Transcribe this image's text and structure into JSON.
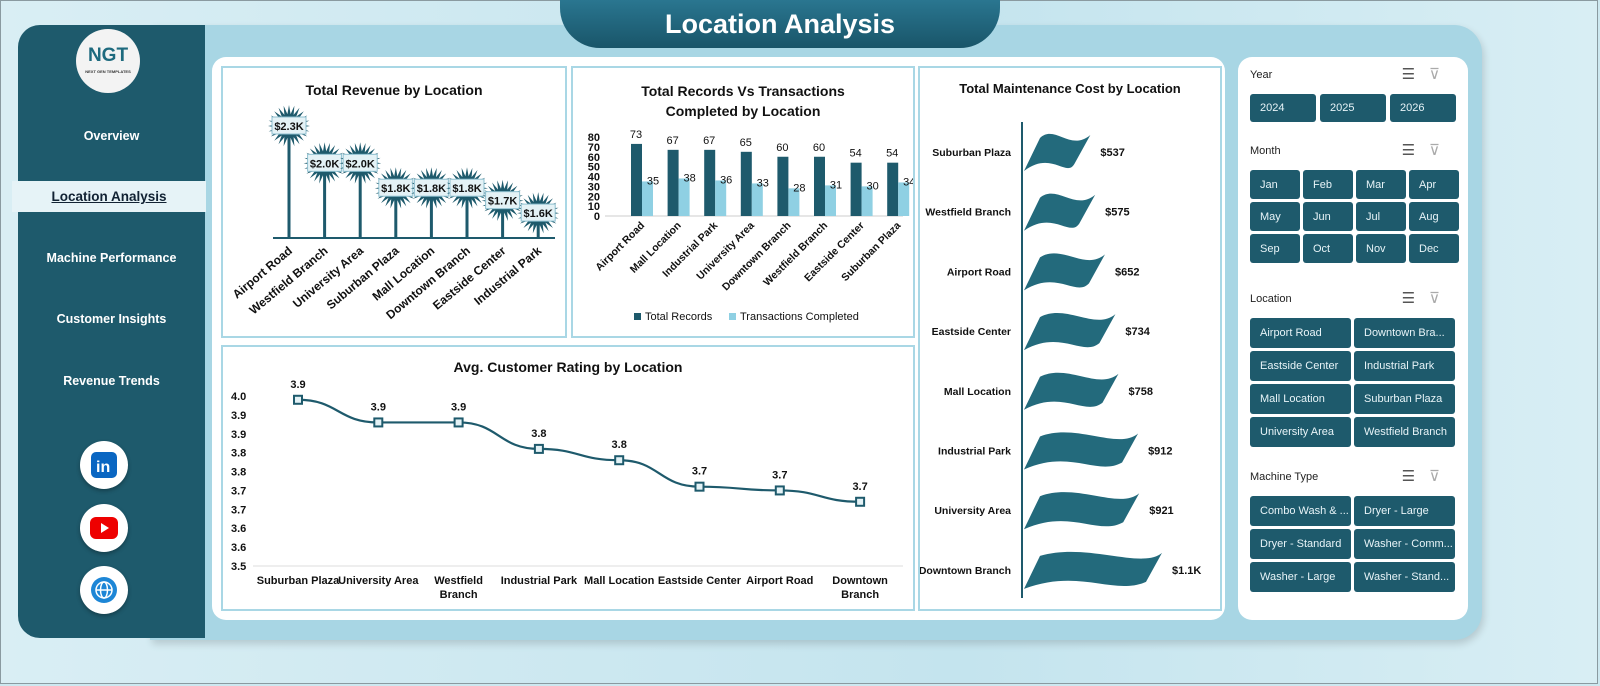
{
  "header": {
    "title": "Location Analysis"
  },
  "sidebar": {
    "logo_text": "NGT",
    "logo_sub": "NEXT GEN TEMPLATES",
    "items": [
      {
        "label": "Overview"
      },
      {
        "label": "Location Analysis",
        "active": true
      },
      {
        "label": "Machine Performance"
      },
      {
        "label": "Customer Insights"
      },
      {
        "label": "Revenue Trends"
      }
    ],
    "social": [
      "linkedin-icon",
      "youtube-icon",
      "globe-icon"
    ]
  },
  "colors": {
    "primary": "#1e5a6c",
    "secondary": "#8fd0e3",
    "background": "#a8d6e4"
  },
  "chart_data": [
    {
      "type": "bar",
      "title": "Total Revenue  by Location",
      "categories": [
        "Airport Road",
        "Westfield Branch",
        "University Area",
        "Suburban Plaza",
        "Mall Location",
        "Downtown Branch",
        "Eastside Center",
        "Industrial Park"
      ],
      "values": [
        2300,
        2000,
        2000,
        1800,
        1800,
        1800,
        1700,
        1600
      ],
      "labels": [
        "$2.3K",
        "$2.0K",
        "$2.0K",
        "$1.8K",
        "$1.8K",
        "$1.8K",
        "$1.7K",
        "$1.6K"
      ]
    },
    {
      "type": "bar",
      "title": "Total Records Vs Transactions Completed by Location",
      "categories": [
        "Airport Road",
        "Mall Location",
        "Industrial Park",
        "University Area",
        "Downtown Branch",
        "Westfield Branch",
        "Eastside Center",
        "Suburban Plaza"
      ],
      "series": [
        {
          "name": "Total Records",
          "values": [
            73,
            67,
            67,
            65,
            60,
            60,
            54,
            54
          ],
          "color": "#1e5a6c"
        },
        {
          "name": "Transactions Completed",
          "values": [
            35,
            38,
            36,
            33,
            28,
            31,
            30,
            34
          ],
          "color": "#8fd0e3"
        }
      ],
      "ylim": [
        0,
        80
      ],
      "yticks": [
        "0",
        "10",
        "20",
        "30",
        "40",
        "50",
        "60",
        "70",
        "80"
      ],
      "legend": "bottom"
    },
    {
      "type": "line",
      "title": "Avg. Customer Rating by Location",
      "categories": [
        "Suburban Plaza",
        "University Area",
        "Westfield Branch",
        "Industrial Park",
        "Mall Location",
        "Eastside Center",
        "Airport Road",
        "Downtown Branch"
      ],
      "values": [
        3.94,
        3.88,
        3.88,
        3.81,
        3.78,
        3.71,
        3.7,
        3.67
      ],
      "labels": [
        "3.9",
        "3.9",
        "3.9",
        "3.8",
        "3.8",
        "3.7",
        "3.7",
        "3.7"
      ],
      "ylim": [
        3.5,
        3.95
      ],
      "yticks": [
        "3.5",
        "3.6",
        "3.6",
        "3.7",
        "3.7",
        "3.8",
        "3.8",
        "3.9",
        "3.9",
        "4.0"
      ]
    },
    {
      "type": "bar",
      "orientation": "horizontal",
      "title": "Total Maintenance Cost by Location",
      "categories": [
        "Suburban Plaza",
        "Westfield Branch",
        "Airport Road",
        "Eastside Center",
        "Mall Location",
        "Industrial Park",
        "University Area",
        "Downtown Branch"
      ],
      "values": [
        537,
        575,
        652,
        734,
        758,
        912,
        921,
        1100
      ],
      "labels": [
        "$537",
        "$575",
        "$652",
        "$734",
        "$758",
        "$912",
        "$921",
        "$1.1K"
      ]
    }
  ],
  "slicers": [
    {
      "title": "Year",
      "items": [
        "2024",
        "2025",
        "2026"
      ]
    },
    {
      "title": "Month",
      "items": [
        "Jan",
        "Feb",
        "Mar",
        "Apr",
        "May",
        "Jun",
        "Jul",
        "Aug",
        "Sep",
        "Oct",
        "Nov",
        "Dec"
      ]
    },
    {
      "title": "Location",
      "items": [
        "Airport Road",
        "Downtown Bra...",
        "Eastside Center",
        "Industrial Park",
        "Mall Location",
        "Suburban Plaza",
        "University Area",
        "Westfield Branch"
      ]
    },
    {
      "title": "Machine Type",
      "items": [
        "Combo Wash & ...",
        "Dryer - Large",
        "Dryer - Standard",
        "Washer - Comm...",
        "Washer - Large",
        "Washer - Stand..."
      ]
    }
  ]
}
